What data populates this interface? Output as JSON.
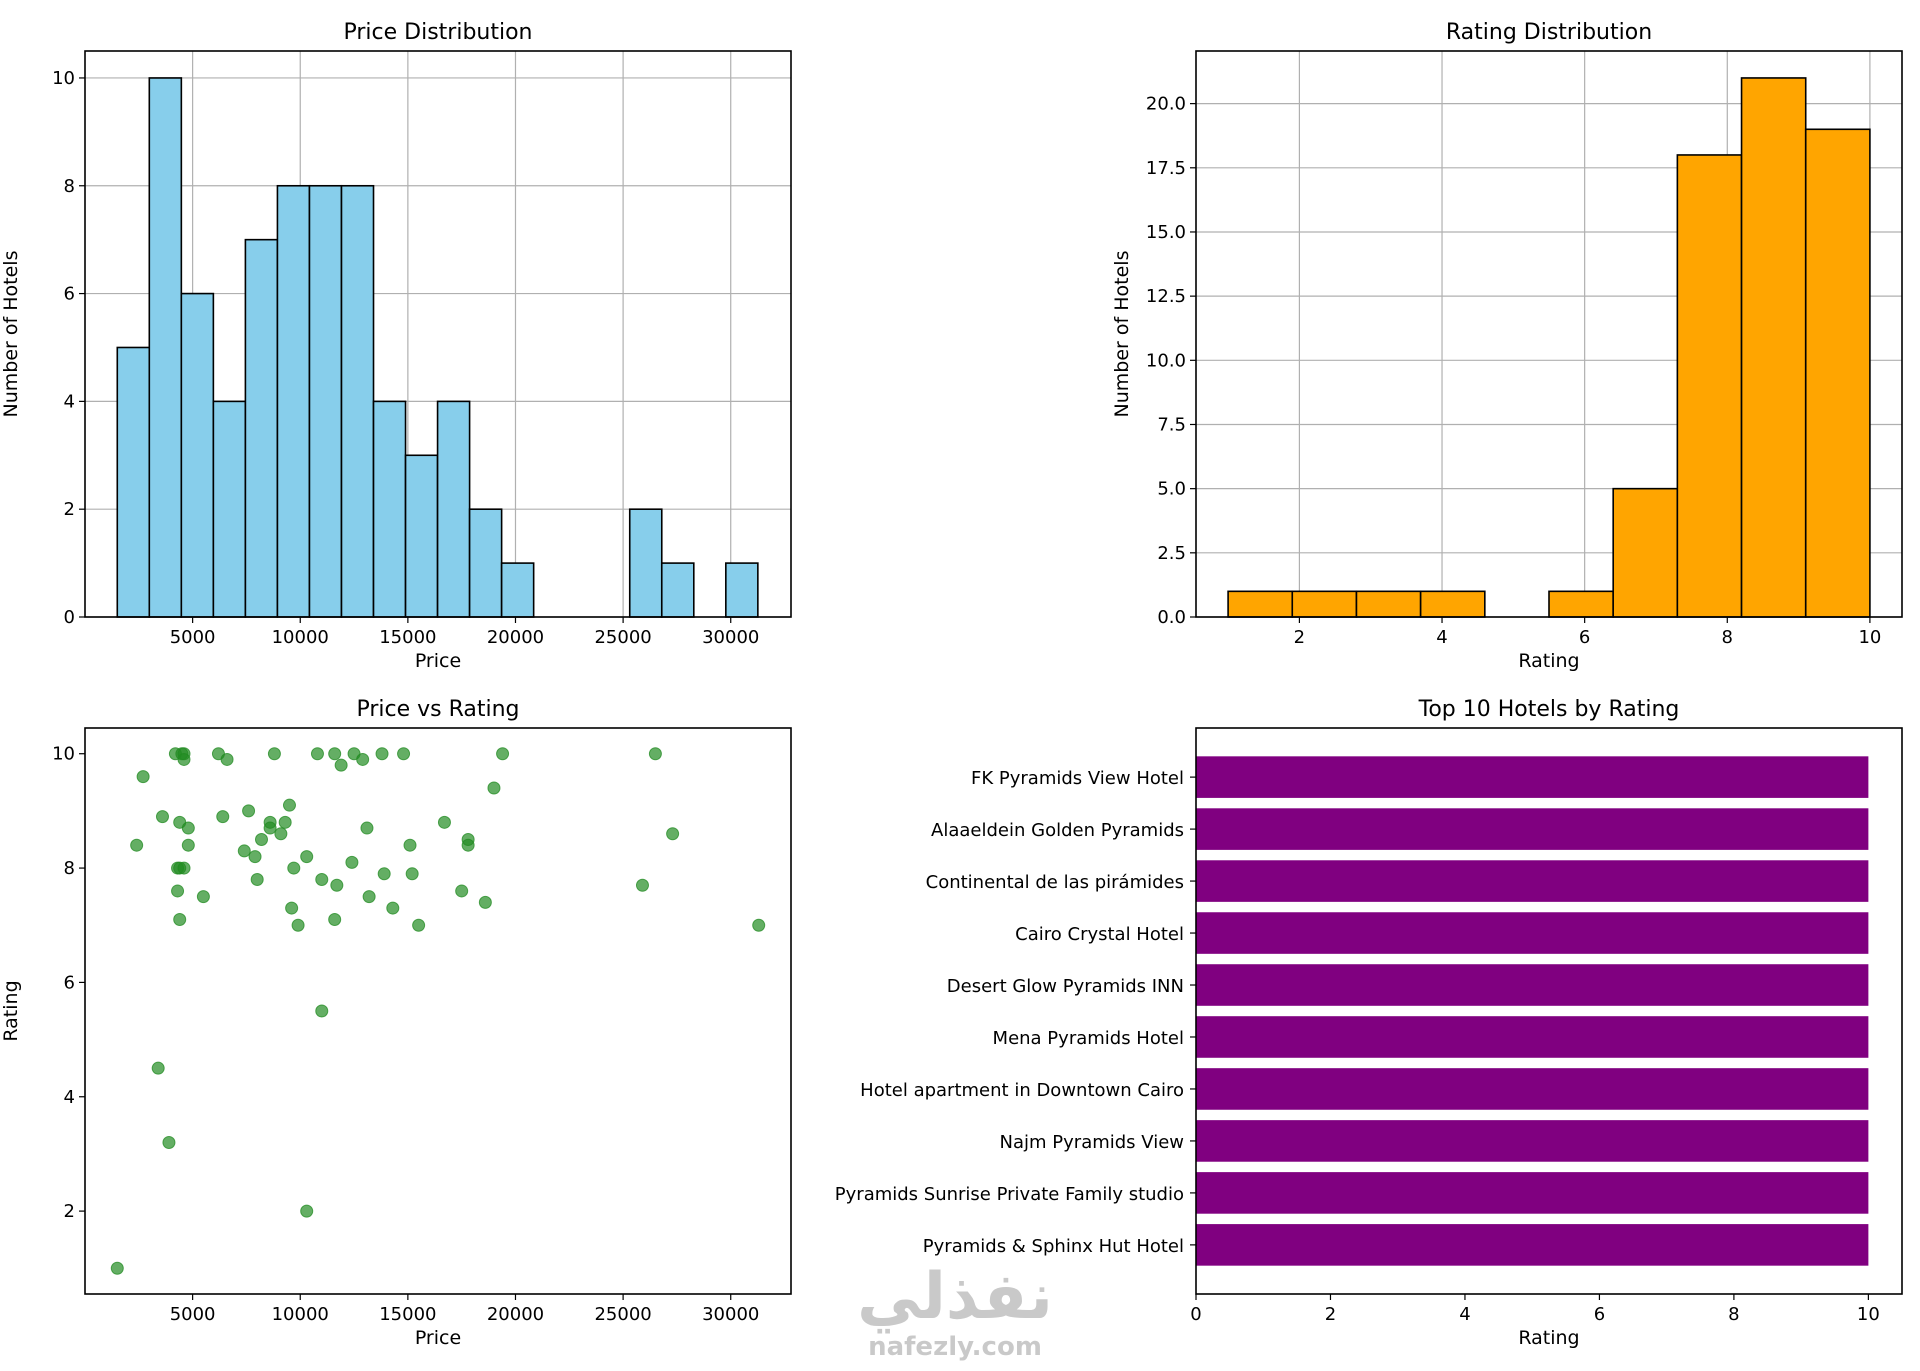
{
  "chart_data": [
    {
      "type": "bar",
      "title": "Price Distribution",
      "xlabel": "Price",
      "ylabel": "Number of Hotels",
      "bin_edges": [
        1500,
        2988,
        4476,
        5964,
        7452,
        8940,
        10428,
        11916,
        13404,
        14892,
        16380,
        17868,
        19356,
        20844,
        22332,
        23820,
        25308,
        26796,
        28284,
        29772,
        31260
      ],
      "values": [
        5,
        10,
        6,
        4,
        7,
        8,
        8,
        8,
        4,
        3,
        4,
        2,
        1,
        0,
        0,
        0,
        2,
        1,
        0,
        1
      ],
      "xlim": [
        0,
        32800
      ],
      "ylim": [
        0,
        10.5
      ],
      "xticks": [
        5000,
        10000,
        15000,
        20000,
        25000,
        30000
      ],
      "yticks": [
        0,
        2,
        4,
        6,
        8,
        10
      ],
      "bar_color": "#87CEEB",
      "grid": true
    },
    {
      "type": "bar",
      "title": "Rating Distribution",
      "xlabel": "Rating",
      "ylabel": "Number of Hotels",
      "bin_edges": [
        1.0,
        1.9,
        2.8,
        3.7,
        4.6,
        5.5,
        6.4,
        7.3,
        8.2,
        9.1,
        10.0
      ],
      "values": [
        1,
        1,
        1,
        1,
        0,
        1,
        5,
        18,
        21,
        19
      ],
      "xlim": [
        0.55,
        10.45
      ],
      "ylim": [
        0,
        22.05
      ],
      "xticks": [
        2,
        4,
        6,
        8,
        10
      ],
      "yticks": [
        0.0,
        2.5,
        5.0,
        7.5,
        10.0,
        12.5,
        15.0,
        17.5,
        20.0
      ],
      "bar_color": "#FFA500",
      "grid": true
    },
    {
      "type": "scatter",
      "title": "Price vs Rating",
      "xlabel": "Price",
      "ylabel": "Rating",
      "xlim": [
        0,
        32800
      ],
      "ylim": [
        0.55,
        10.45
      ],
      "xticks": [
        5000,
        10000,
        15000,
        20000,
        25000,
        30000
      ],
      "yticks": [
        2,
        4,
        6,
        8,
        10
      ],
      "point_color": "#228B22",
      "grid": false,
      "points": [
        [
          1500,
          1.0
        ],
        [
          2400,
          8.4
        ],
        [
          2700,
          9.6
        ],
        [
          3400,
          4.5
        ],
        [
          3600,
          8.9
        ],
        [
          3900,
          3.2
        ],
        [
          4200,
          10.0
        ],
        [
          4300,
          7.6
        ],
        [
          4300,
          8.0
        ],
        [
          4400,
          8.8
        ],
        [
          4400,
          8.0
        ],
        [
          4400,
          7.1
        ],
        [
          4500,
          10.0
        ],
        [
          4600,
          10.0
        ],
        [
          4600,
          9.9
        ],
        [
          4600,
          8.0
        ],
        [
          4800,
          8.7
        ],
        [
          4800,
          8.4
        ],
        [
          5500,
          7.5
        ],
        [
          6200,
          10.0
        ],
        [
          6400,
          8.9
        ],
        [
          6600,
          9.9
        ],
        [
          7400,
          8.3
        ],
        [
          7600,
          9.0
        ],
        [
          7900,
          8.2
        ],
        [
          8000,
          7.8
        ],
        [
          8200,
          8.5
        ],
        [
          8600,
          8.8
        ],
        [
          8600,
          8.7
        ],
        [
          8800,
          10.0
        ],
        [
          9100,
          8.6
        ],
        [
          9300,
          8.8
        ],
        [
          9500,
          9.1
        ],
        [
          9600,
          7.3
        ],
        [
          9700,
          8.0
        ],
        [
          9900,
          7.0
        ],
        [
          10300,
          8.2
        ],
        [
          10300,
          2.0
        ],
        [
          10800,
          10.0
        ],
        [
          11000,
          7.8
        ],
        [
          11000,
          5.5
        ],
        [
          11600,
          10.0
        ],
        [
          11600,
          7.1
        ],
        [
          11700,
          7.7
        ],
        [
          11900,
          9.8
        ],
        [
          12400,
          8.1
        ],
        [
          12500,
          10.0
        ],
        [
          12900,
          9.9
        ],
        [
          13100,
          8.7
        ],
        [
          13200,
          7.5
        ],
        [
          13800,
          10.0
        ],
        [
          13900,
          7.9
        ],
        [
          14300,
          7.3
        ],
        [
          14800,
          10.0
        ],
        [
          15100,
          8.4
        ],
        [
          15200,
          7.9
        ],
        [
          15500,
          7.0
        ],
        [
          16700,
          8.8
        ],
        [
          17500,
          7.6
        ],
        [
          17800,
          8.5
        ],
        [
          17800,
          8.4
        ],
        [
          18600,
          7.4
        ],
        [
          19000,
          9.4
        ],
        [
          19400,
          10.0
        ],
        [
          25900,
          7.7
        ],
        [
          26500,
          10.0
        ],
        [
          27300,
          8.6
        ],
        [
          31300,
          7.0
        ]
      ]
    },
    {
      "type": "bar",
      "orientation": "horizontal",
      "title": "Top 10 Hotels by Rating",
      "xlabel": "Rating",
      "ylabel": "",
      "categories": [
        "FK Pyramids View Hotel",
        "Alaaeldein Golden Pyramids",
        "Continental de las pirámides",
        "Cairo Crystal Hotel",
        "Desert Glow Pyramids INN",
        "Mena Pyramids Hotel",
        "Hotel apartment in Downtown Cairo",
        "Najm Pyramids View",
        "Pyramids Sunrise Private Family studio",
        "Pyramids & Sphinx Hut Hotel"
      ],
      "values": [
        10,
        10,
        10,
        10,
        10,
        10,
        10,
        10,
        10,
        10
      ],
      "xlim": [
        0,
        10.5
      ],
      "xticks": [
        0,
        2,
        4,
        6,
        8,
        10
      ],
      "bar_color": "#800080",
      "grid": false
    }
  ],
  "watermark": {
    "arabic": "نفذلي",
    "latin": "nafezly.com"
  }
}
